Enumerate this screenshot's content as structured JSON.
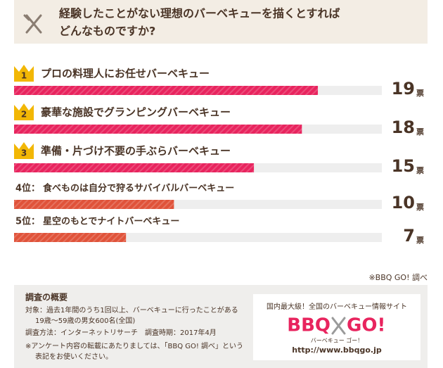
{
  "header": {
    "title_lines": [
      "経験したことがない理想のバーベキューを描くとすれば",
      "どんなものですか?"
    ]
  },
  "chart_data": {
    "type": "bar",
    "orientation": "horizontal",
    "ranks": [
      "1",
      "2",
      "3",
      "4位：",
      "5位："
    ],
    "categories": [
      "プロの料理人にお任せバーベキュー",
      "豪華な施設でグランピングバーベキュー",
      "準備・片づけ不要の手ぶらバーベキュー",
      "食べものは自分で狩るサバイバルバーベキュー",
      "星空のもとでナイトバーベキュー"
    ],
    "values": [
      19,
      18,
      15,
      10,
      7
    ],
    "unit": "票",
    "colors": [
      "#e8245e",
      "#e8245e",
      "#e8245e",
      "#e0533a",
      "#e0533a"
    ],
    "xlim": [
      0,
      23
    ]
  },
  "source": "※BBQ GO! 調べ",
  "survey": {
    "title": "調査の概要",
    "lines": [
      "対象：過去1年間のうち1回以上、バーベキューに行ったことがある",
      "19歳～59歳の男女600名(全国)",
      "調査方法：インターネットリサーチ　調査時期：2017年4月",
      "※アンケート内容の転載にあたりましては、「BBQ GO! 調べ」という",
      "表記をお使いください。"
    ]
  },
  "ad": {
    "tagline": "国内最大級！全国のバーベキュー情報サイト",
    "logo_left": "BBQ",
    "logo_right": "GO!",
    "reading": "バーベキュー ゴー！",
    "url": "http://www.bbqgo.jp"
  }
}
